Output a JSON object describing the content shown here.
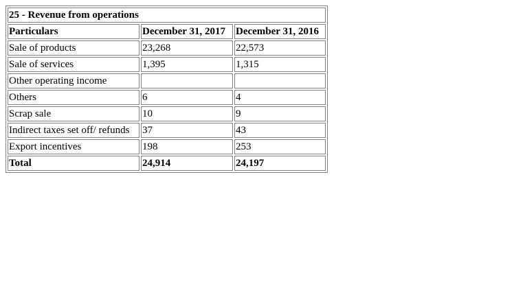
{
  "title": "25 - Revenue from operations",
  "columns": [
    "Particulars",
    "December 31, 2017",
    "December 31, 2016"
  ],
  "rows": [
    {
      "particular": "Sale of products",
      "y2017": "23,268",
      "y2016": "22,573"
    },
    {
      "particular": "Sale of services",
      "y2017": "1,395",
      "y2016": "1,315"
    },
    {
      "particular": "Other operating income",
      "y2017": "",
      "y2016": ""
    },
    {
      "particular": "Others",
      "y2017": "6",
      "y2016": "4"
    },
    {
      "particular": "Scrap sale",
      "y2017": "10",
      "y2016": "9"
    },
    {
      "particular": "Indirect taxes set off/ refunds",
      "y2017": "37",
      "y2016": "43"
    },
    {
      "particular": "Export incentives",
      "y2017": "198",
      "y2016": "253"
    }
  ],
  "total": {
    "label": "Total",
    "y2017": "24,914",
    "y2016": "24,197"
  }
}
